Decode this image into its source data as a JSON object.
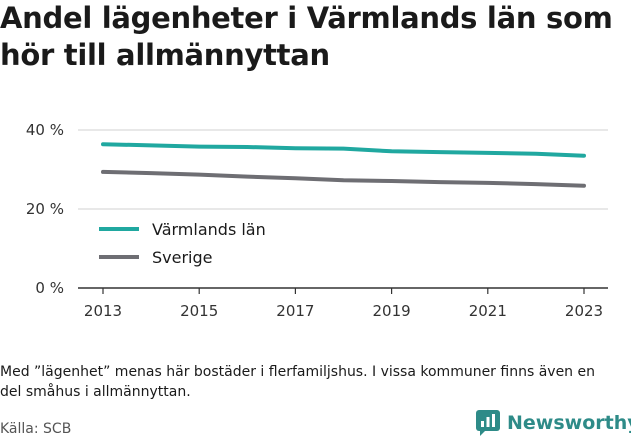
{
  "title": "Andel lägenheter i Värmlands län som hör till allmännyttan",
  "note": "Med ”lägenhet” menas här bostäder i flerfamiljshus. I vissa kommuner finns även en del småhus i allmännyttan.",
  "source": "Källa: SCB",
  "brand": {
    "name": "Newsworthy",
    "icon": "bar-chart-speech-icon",
    "color": "#2e8b88"
  },
  "chart_data": {
    "type": "line",
    "x": [
      2013,
      2014,
      2015,
      2016,
      2017,
      2018,
      2019,
      2020,
      2021,
      2022,
      2023
    ],
    "x_tick_labels": [
      "2013",
      "2015",
      "2017",
      "2019",
      "2021",
      "2023"
    ],
    "y_tick_labels": [
      "0 %",
      "20 %",
      "40 %"
    ],
    "ylim": [
      0,
      40
    ],
    "grid": true,
    "legend_position": "bottom-left",
    "series": [
      {
        "name": "Värmlands län",
        "color": "#20a8a0",
        "values": [
          36.4,
          36.1,
          35.8,
          35.7,
          35.4,
          35.3,
          34.6,
          34.4,
          34.2,
          34.0,
          33.5
        ]
      },
      {
        "name": "Sverige",
        "color": "#6e6e73",
        "values": [
          29.4,
          29.1,
          28.7,
          28.2,
          27.8,
          27.3,
          27.1,
          26.8,
          26.6,
          26.3,
          25.9
        ]
      }
    ]
  }
}
